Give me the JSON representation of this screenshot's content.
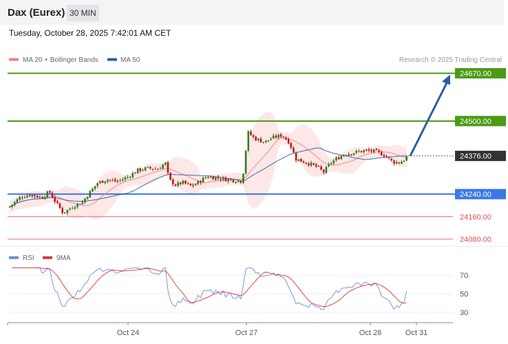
{
  "header": {
    "title": "Dax (Eurex)",
    "timeframe": "30 MIN"
  },
  "timestamp": "Tuesday, October 28, 2025 7:42:01 AM CET",
  "legend": {
    "ma20": "MA 20 + Bollinger Bands",
    "ma50": "MA 50",
    "credit": "Research © 2025 Trading Central"
  },
  "colors": {
    "up": "#2e7d1f",
    "down": "#c2150f",
    "ma20": "#f08080",
    "ma50": "#2d5aa8",
    "band": "#fde3e3",
    "resistance": "#4b9b16",
    "pivot": "#3b78e7",
    "support": "#e05050",
    "arrow": "#2c5ea0",
    "current": "#333333",
    "rsi": "#6a8ed6",
    "rsi_ma": "#e03030"
  },
  "chart_data": [
    {
      "type": "candlestick",
      "name": "price",
      "x_labels": [
        "Oct 24",
        "Oct 27",
        "Oct 28",
        "Oct 31"
      ],
      "ylim": [
        24040,
        24700
      ],
      "levels": [
        {
          "value": 24670.0,
          "label": "24670.00",
          "kind": "resistance"
        },
        {
          "value": 24500.0,
          "label": "24500.00",
          "kind": "resistance"
        },
        {
          "value": 24376.0,
          "label": "24376.00",
          "kind": "current"
        },
        {
          "value": 24240.0,
          "label": "24240.00",
          "kind": "pivot"
        },
        {
          "value": 24160.0,
          "label": "24160.00",
          "kind": "support"
        },
        {
          "value": 24080.0,
          "label": "24080.00",
          "kind": "support"
        }
      ],
      "forecast_arrow": {
        "from": 24376,
        "to": 24670
      }
    },
    {
      "type": "line",
      "name": "rsi",
      "legend": [
        "RSI",
        "9MA"
      ],
      "ylim": [
        25,
        80
      ],
      "yticks": [
        30,
        50,
        70
      ],
      "ytick_labels": [
        "30",
        "50",
        "70"
      ]
    }
  ]
}
